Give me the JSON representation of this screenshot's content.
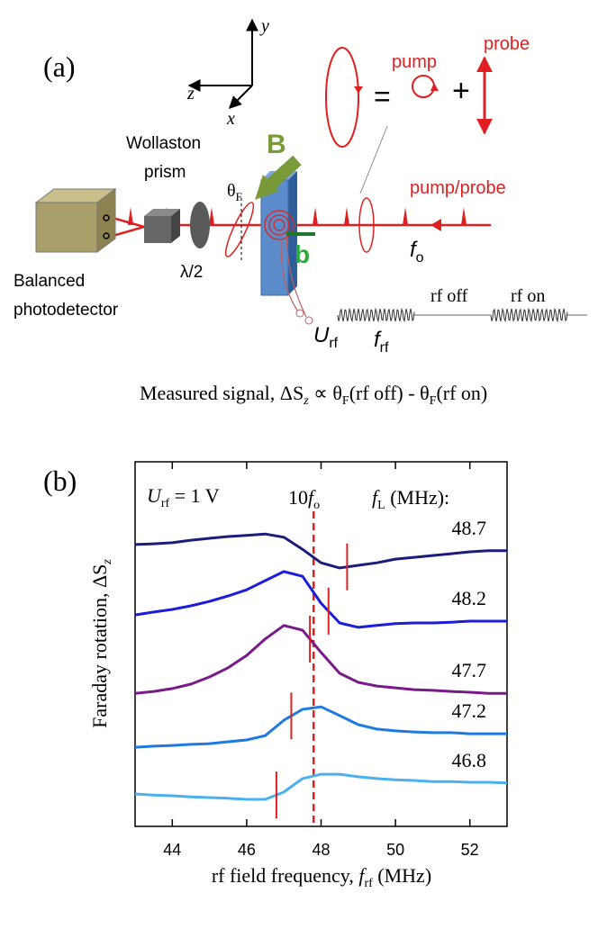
{
  "diagram": {
    "label": "(a)",
    "axis_y": "y",
    "axis_z": "z",
    "axis_x": "x",
    "equals": "=",
    "plus": "+",
    "pump": "pump",
    "probe": "probe",
    "field_B": "B",
    "wollaston": [
      "Wollaston",
      "prism"
    ],
    "theta_F": [
      "θ",
      "F"
    ],
    "pump_probe": "pump/probe",
    "field_b": "b",
    "f_o": [
      "f",
      "o"
    ],
    "detector": [
      "Balanced",
      "photodetector"
    ],
    "half_wave": "λ/2",
    "U_rf": [
      "U",
      "rf"
    ],
    "f_rf": [
      "f",
      "rf"
    ],
    "rf_off": "rf off",
    "rf_on": "rf on",
    "caption": [
      "Measured signal, ΔS",
      "z",
      " ∝ θ",
      "F",
      "(rf off) - θ",
      "F",
      "(rf on)"
    ]
  },
  "chart_data": {
    "type": "line",
    "panel_label": "(b)",
    "U_label": [
      "U",
      "rf",
      " = 1 V"
    ],
    "ref_label": [
      "10",
      "f",
      "o"
    ],
    "fl_header": [
      "f",
      "L",
      " (MHz):"
    ],
    "x_label": [
      "rf field frequency, ",
      "f",
      "rf",
      " (MHz)"
    ],
    "y_label": [
      "Faraday rotation, ΔS",
      "z"
    ],
    "xlim": [
      43,
      53
    ],
    "xticks": [
      44,
      46,
      48,
      50,
      52
    ],
    "ylim": [
      0,
      10
    ],
    "reference_line_x": 47.8,
    "x": [
      43,
      43.5,
      44,
      44.5,
      45,
      45.5,
      46,
      46.5,
      47,
      47.5,
      48,
      48.5,
      49,
      49.5,
      50,
      50.5,
      51,
      51.5,
      52,
      52.5,
      53
    ],
    "series": [
      {
        "name": "48.7",
        "f_L": 48.7,
        "color": "#1c1c7c",
        "values": [
          7.73,
          7.75,
          7.78,
          7.85,
          7.9,
          7.95,
          7.98,
          8.02,
          7.93,
          7.6,
          7.23,
          7.09,
          7.16,
          7.23,
          7.33,
          7.38,
          7.43,
          7.48,
          7.53,
          7.56,
          7.56
        ]
      },
      {
        "name": "48.2",
        "f_L": 48.2,
        "color": "#1c1cdc",
        "values": [
          5.8,
          5.88,
          5.95,
          6.05,
          6.17,
          6.32,
          6.49,
          6.74,
          6.99,
          6.86,
          6.12,
          5.58,
          5.46,
          5.51,
          5.56,
          5.58,
          5.58,
          5.6,
          5.63,
          5.63,
          5.63
        ]
      },
      {
        "name": "47.7",
        "f_L": 47.7,
        "color": "#7a1a8a",
        "values": [
          3.65,
          3.7,
          3.78,
          3.9,
          4.1,
          4.35,
          4.69,
          5.14,
          5.51,
          5.38,
          4.77,
          4.2,
          3.95,
          3.85,
          3.8,
          3.75,
          3.73,
          3.7,
          3.68,
          3.65,
          3.65
        ]
      },
      {
        "name": "47.2",
        "f_L": 47.2,
        "color": "#1e7ae0",
        "values": [
          2.17,
          2.2,
          2.22,
          2.25,
          2.27,
          2.32,
          2.37,
          2.49,
          2.91,
          3.21,
          3.28,
          3.04,
          2.79,
          2.67,
          2.62,
          2.59,
          2.57,
          2.57,
          2.54,
          2.54,
          2.54
        ]
      },
      {
        "name": "46.8",
        "f_L": 46.8,
        "color": "#4ab0ee",
        "values": [
          0.89,
          0.86,
          0.84,
          0.81,
          0.79,
          0.77,
          0.74,
          0.74,
          0.94,
          1.31,
          1.43,
          1.43,
          1.36,
          1.31,
          1.28,
          1.26,
          1.23,
          1.23,
          1.21,
          1.21,
          1.19
        ]
      }
    ],
    "marker_color": "#e02020"
  }
}
